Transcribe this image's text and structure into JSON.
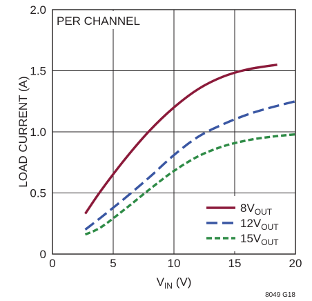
{
  "chart_data": {
    "type": "line",
    "title": "",
    "annotation": "PER CHANNEL",
    "figure_code": "8049 G18",
    "xlabel": {
      "main": "V",
      "sub": "IN",
      "suffix": " (V)"
    },
    "ylabel": "LOAD CURRENT (A)",
    "xlim": [
      0,
      20
    ],
    "ylim": [
      0,
      2.0
    ],
    "xticks": [
      0,
      5,
      10,
      15,
      20
    ],
    "xtick_labels": [
      "0",
      "5",
      "10",
      "15",
      "20"
    ],
    "yticks": [
      0,
      0.5,
      1.0,
      1.5,
      2.0
    ],
    "ytick_labels": [
      "0",
      "0.5",
      "1.0",
      "1.5",
      "2.0"
    ],
    "grid": true,
    "legend_position": "bottom-right",
    "series": [
      {
        "name": "8V",
        "name_sub": "OUT",
        "color": "#8b1a3a",
        "dash": "solid",
        "x": [
          2.7,
          4,
          6,
          8,
          10,
          12,
          14,
          16,
          18.5
        ],
        "y": [
          0.33,
          0.52,
          0.78,
          1.01,
          1.2,
          1.35,
          1.45,
          1.51,
          1.55
        ]
      },
      {
        "name": "12V",
        "name_sub": "OUT",
        "color": "#3a57a3",
        "dash": "long-dash",
        "x": [
          2.7,
          4,
          6,
          8,
          10,
          12,
          14,
          16,
          18,
          20
        ],
        "y": [
          0.2,
          0.3,
          0.46,
          0.63,
          0.81,
          0.96,
          1.06,
          1.14,
          1.2,
          1.25
        ]
      },
      {
        "name": "15V",
        "name_sub": "OUT",
        "color": "#2e8b46",
        "dash": "short-dash",
        "x": [
          2.7,
          4,
          6,
          8,
          10,
          12,
          14,
          16,
          18,
          20
        ],
        "y": [
          0.16,
          0.22,
          0.37,
          0.53,
          0.68,
          0.8,
          0.88,
          0.93,
          0.96,
          0.98
        ]
      }
    ]
  }
}
